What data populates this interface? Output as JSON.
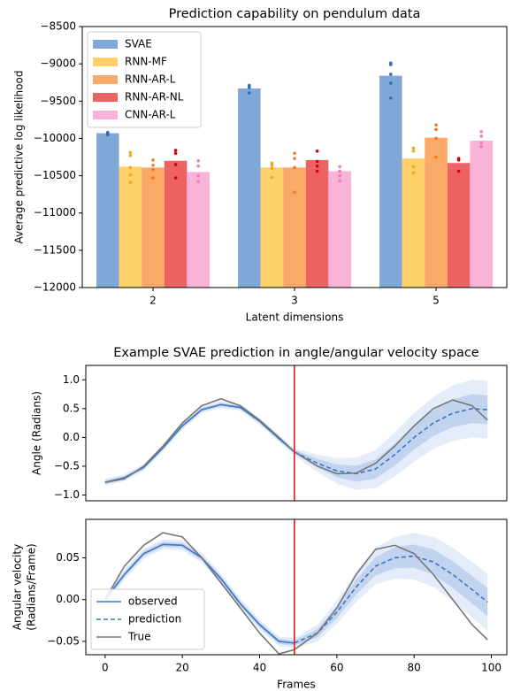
{
  "chart_data": [
    {
      "type": "bar",
      "title": "Prediction capability on pendulum data",
      "xlabel": "Latent dimensions",
      "ylabel": "Average predictive log likelihood",
      "categories": [
        "2",
        "3",
        "5"
      ],
      "ylim": [
        -12000,
        -8500
      ],
      "yticks": [
        {
          "value": -12000,
          "label": "−12000"
        },
        {
          "value": -11500,
          "label": "−11500"
        },
        {
          "value": -11000,
          "label": "−11000"
        },
        {
          "value": -10500,
          "label": "−10500"
        },
        {
          "value": -10000,
          "label": "−10000"
        },
        {
          "value": -9500,
          "label": "−9500"
        },
        {
          "value": -9000,
          "label": "−9000"
        },
        {
          "value": -8500,
          "label": "−8500"
        }
      ],
      "legend": "upper left",
      "series": [
        {
          "name": "SVAE",
          "color": "#7fa8d8",
          "dot_color": "#2f6eb5",
          "values": [
            -9930,
            -9330,
            -9160
          ],
          "runs": [
            [
              -9920,
              -9930,
              -9945,
              -9950
            ],
            [
              -9290,
              -9300,
              -9320,
              -9390
            ],
            [
              -8990,
              -9010,
              -9140,
              -9260,
              -9460
            ]
          ]
        },
        {
          "name": "RNN-MF",
          "color": "#fdd06a",
          "dot_color": "#f5a623",
          "values": [
            -10380,
            -10390,
            -10270
          ],
          "runs": [
            [
              -10190,
              -10230,
              -10390,
              -10490,
              -10590
            ],
            [
              -10330,
              -10360,
              -10400,
              -10520
            ],
            [
              -10130,
              -10170,
              -10380,
              -10460
            ]
          ]
        },
        {
          "name": "RNN-AR-L",
          "color": "#fba968",
          "dot_color": "#f07c1e",
          "values": [
            -10390,
            -10390,
            -9990
          ],
          "runs": [
            [
              -10290,
              -10360,
              -10420,
              -10530
            ],
            [
              -10200,
              -10270,
              -10390,
              -10720
            ],
            [
              -9820,
              -9880,
              -10000,
              -10250
            ]
          ]
        },
        {
          "name": "RNN-AR-NL",
          "color": "#ec6363",
          "dot_color": "#d40000",
          "values": [
            -10300,
            -10290,
            -10330
          ],
          "runs": [
            [
              -10160,
              -10200,
              -10350,
              -10530
            ],
            [
              -10170,
              -10310,
              -10370,
              -10440
            ],
            [
              -10270,
              -10290,
              -10440
            ]
          ]
        },
        {
          "name": "CNN-AR-L",
          "color": "#f9b3d9",
          "dot_color": "#f07cc0",
          "values": [
            -10450,
            -10440,
            -10030
          ],
          "runs": [
            [
              -10300,
              -10370,
              -10500,
              -10580
            ],
            [
              -10380,
              -10440,
              -10500,
              -10570
            ],
            [
              -9910,
              -9970,
              -10060,
              -10110
            ]
          ]
        }
      ]
    },
    {
      "type": "line",
      "title": "Example SVAE prediction in angle/angular velocity space",
      "ylabel": "Angle (Radians)",
      "x": [
        0,
        5,
        10,
        15,
        20,
        25,
        30,
        35,
        40,
        45,
        49,
        55,
        60,
        65,
        70,
        75,
        80,
        85,
        90,
        95,
        99
      ],
      "xlim": [
        -5,
        104
      ],
      "ylim": [
        -1.1,
        1.25
      ],
      "yticks": [
        {
          "value": -1,
          "label": "−1.0"
        },
        {
          "value": -0.5,
          "label": "−0.5"
        },
        {
          "value": 0,
          "label": "0.0"
        },
        0.5,
        {
          "value": 1,
          "label": "1.0"
        }
      ],
      "vline": {
        "x": 49,
        "color": "#e8191c"
      },
      "intervals": [
        {
          "color": "#dce7f6",
          "lower": [
            -0.84,
            -0.76,
            -0.58,
            -0.24,
            0.14,
            0.42,
            0.51,
            0.46,
            0.22,
            -0.08,
            -0.31,
            -0.6,
            -0.8,
            -0.91,
            -0.88,
            -0.68,
            -0.42,
            -0.2,
            -0.06,
            0.0,
            -0.02
          ],
          "upper": [
            -0.72,
            -0.64,
            -0.46,
            -0.12,
            0.26,
            0.54,
            0.63,
            0.58,
            0.34,
            0.04,
            -0.19,
            -0.3,
            -0.36,
            -0.35,
            -0.22,
            0.08,
            0.42,
            0.7,
            0.9,
            1.0,
            0.98
          ]
        },
        {
          "color": "#b9cdec",
          "lower": [
            -0.81,
            -0.73,
            -0.55,
            -0.21,
            0.17,
            0.45,
            0.54,
            0.49,
            0.25,
            -0.05,
            -0.28,
            -0.525,
            -0.69,
            -0.77,
            -0.715,
            -0.49,
            -0.21,
            0.025,
            0.18,
            0.25,
            0.23
          ],
          "upper": [
            -0.75,
            -0.67,
            -0.49,
            -0.15,
            0.23,
            0.51,
            0.6,
            0.55,
            0.31,
            0.01,
            -0.22,
            -0.375,
            -0.47,
            -0.49,
            -0.385,
            -0.11,
            0.21,
            0.475,
            0.66,
            0.75,
            0.73
          ]
        }
      ],
      "series": [
        {
          "color": "#3a78c3",
          "dash": false,
          "values": [
            -0.78,
            -0.7,
            -0.52,
            -0.18,
            0.2,
            0.48,
            0.57,
            0.52,
            0.28,
            -0.02,
            -0.25,
            null,
            null,
            null,
            null,
            null,
            null,
            null,
            null,
            null,
            null
          ]
        },
        {
          "color": "#3a78c3",
          "dash": true,
          "values": [
            null,
            null,
            null,
            null,
            null,
            null,
            null,
            null,
            null,
            null,
            -0.25,
            -0.45,
            -0.58,
            -0.63,
            -0.55,
            -0.3,
            0.0,
            0.25,
            0.42,
            0.5,
            0.48
          ]
        },
        {
          "color": "#777777",
          "dash": false,
          "values": [
            -0.78,
            -0.72,
            -0.5,
            -0.15,
            0.25,
            0.55,
            0.67,
            0.55,
            0.3,
            0.0,
            -0.25,
            -0.5,
            -0.63,
            -0.62,
            -0.45,
            -0.15,
            0.2,
            0.5,
            0.65,
            0.55,
            0.3
          ]
        }
      ]
    },
    {
      "type": "line",
      "xlabel": "Frames",
      "ylabel": [
        "Angular velocity",
        "(Radians/Frame)"
      ],
      "x": [
        0,
        5,
        10,
        15,
        20,
        25,
        30,
        35,
        40,
        45,
        49,
        55,
        60,
        65,
        70,
        75,
        80,
        85,
        90,
        95,
        99
      ],
      "xlim": [
        -5,
        104
      ],
      "ylim": [
        -0.066,
        0.096
      ],
      "xticks": [
        0,
        20,
        40,
        60,
        80,
        100
      ],
      "yticks": [
        {
          "value": -0.05,
          "label": "−0.05"
        },
        {
          "value": 0,
          "label": "0.00"
        },
        0.05
      ],
      "vline": {
        "x": 49,
        "color": "#e8191c"
      },
      "legend": "lower left",
      "intervals": [
        {
          "color": "#dce7f6",
          "lower": [
            -0.006,
            0.024,
            0.049,
            0.06,
            0.059,
            0.044,
            0.019,
            -0.011,
            -0.036,
            -0.056,
            -0.058,
            -0.05,
            -0.029,
            -0.003,
            0.018,
            0.025,
            0.024,
            0.015,
            -0.002,
            -0.021,
            -0.037
          ],
          "upper": [
            0.006,
            0.036,
            0.061,
            0.072,
            0.071,
            0.056,
            0.031,
            0.001,
            -0.024,
            -0.044,
            -0.046,
            -0.03,
            -0.001,
            0.033,
            0.062,
            0.075,
            0.08,
            0.075,
            0.062,
            0.045,
            0.031
          ]
        },
        {
          "color": "#b9cdec",
          "lower": [
            -0.003,
            0.027,
            0.052,
            0.063,
            0.062,
            0.047,
            0.022,
            -0.008,
            -0.033,
            -0.053,
            -0.055,
            -0.045,
            -0.022,
            0.006,
            0.029,
            0.0375,
            0.038,
            0.03,
            0.014,
            -0.0045,
            -0.02
          ],
          "upper": [
            0.003,
            0.033,
            0.058,
            0.069,
            0.068,
            0.053,
            0.028,
            -0.002,
            -0.027,
            -0.047,
            -0.049,
            -0.035,
            -0.008,
            0.024,
            0.051,
            0.0625,
            0.066,
            0.06,
            0.046,
            0.0285,
            0.014
          ]
        }
      ],
      "series": [
        {
          "name": "observed",
          "color": "#3a78c3",
          "dash": false,
          "values": [
            0.0,
            0.03,
            0.055,
            0.066,
            0.065,
            0.05,
            0.025,
            -0.005,
            -0.03,
            -0.05,
            -0.052,
            null,
            null,
            null,
            null,
            null,
            null,
            null,
            null,
            null,
            null
          ]
        },
        {
          "name": "prediction",
          "color": "#3a78c3",
          "dash": true,
          "values": [
            null,
            null,
            null,
            null,
            null,
            null,
            null,
            null,
            null,
            null,
            -0.052,
            -0.04,
            -0.015,
            0.015,
            0.04,
            0.05,
            0.052,
            0.045,
            0.03,
            0.012,
            -0.003
          ]
        },
        {
          "name": "True",
          "color": "#777777",
          "dash": false,
          "values": [
            0.0,
            0.04,
            0.065,
            0.08,
            0.075,
            0.05,
            0.02,
            -0.01,
            -0.04,
            -0.065,
            -0.06,
            -0.04,
            -0.01,
            0.03,
            0.06,
            0.065,
            0.055,
            0.03,
            0.0,
            -0.03,
            -0.048
          ]
        }
      ]
    }
  ]
}
